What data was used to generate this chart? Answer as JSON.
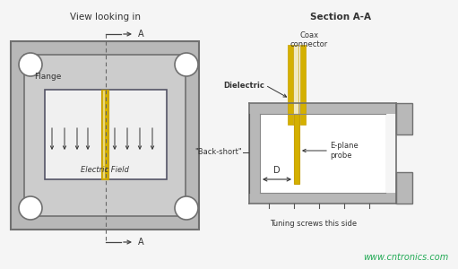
{
  "bg_color": "#f5f5f5",
  "gray_outer": "#b8b8b8",
  "gray_inner": "#cccccc",
  "gray_cavity": "#e0e0e0",
  "white_cavity": "#f0f0f0",
  "yellow_dark": "#c8a000",
  "yellow": "#d4b000",
  "yellow_light": "#e8cc60",
  "cream": "#f0e8c0",
  "text_dark": "#333333",
  "text_mid": "#444444",
  "green_text": "#22aa55",
  "gray_border": "#707070",
  "gray_mid": "#999999",
  "title_left": "View looking in",
  "title_right": "Section A-A",
  "label_flange": "Flange",
  "label_electric": "Electric Field",
  "label_coax": "Coax\nconnector",
  "label_dielectric": "Dielectric",
  "label_back_short": "\"Back-short\"",
  "label_eplane": "E-plane\nprobe",
  "label_D": "D",
  "label_tuning": "Tuning screws this side",
  "label_website": "www.cntronics.com",
  "label_A": "A"
}
